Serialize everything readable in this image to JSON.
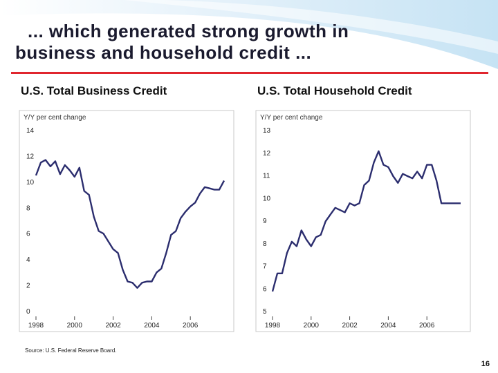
{
  "slide": {
    "title_line1": "... which generated strong growth in",
    "title_line2": "business and household credit ...",
    "source": "Source: U.S. Federal Reserve Board.",
    "page_number": "16",
    "accent_color": "#e0262e",
    "line_color": "#2b2d6e"
  },
  "chart_data": [
    {
      "type": "line",
      "title": "U.S. Total Business Credit",
      "ylabel": "Y/Y per cent change",
      "xlabel": "",
      "ylim": [
        0,
        14
      ],
      "yticks": [
        0,
        2,
        4,
        6,
        8,
        10,
        12,
        14
      ],
      "xlim": [
        1998,
        2007.75
      ],
      "xticks": [
        1998,
        2000,
        2002,
        2004,
        2006
      ],
      "series": [
        {
          "name": "U.S. Total Business Credit",
          "x": [
            1998.0,
            1998.25,
            1998.5,
            1998.75,
            1999.0,
            1999.25,
            1999.5,
            1999.75,
            2000.0,
            2000.25,
            2000.5,
            2000.75,
            2001.0,
            2001.25,
            2001.5,
            2001.75,
            2002.0,
            2002.25,
            2002.5,
            2002.75,
            2003.0,
            2003.25,
            2003.5,
            2003.75,
            2004.0,
            2004.25,
            2004.5,
            2004.75,
            2005.0,
            2005.25,
            2005.5,
            2005.75,
            2006.0,
            2006.25,
            2006.5,
            2006.75,
            2007.0,
            2007.25,
            2007.5,
            2007.75
          ],
          "values": [
            10.9,
            11.9,
            12.1,
            11.6,
            12.0,
            11.0,
            11.7,
            11.3,
            10.8,
            11.5,
            9.7,
            9.4,
            7.7,
            6.6,
            6.4,
            5.8,
            5.2,
            4.9,
            3.6,
            2.7,
            2.6,
            2.2,
            2.6,
            2.7,
            2.7,
            3.4,
            3.7,
            4.9,
            6.3,
            6.6,
            7.6,
            8.1,
            8.5,
            8.8,
            9.5,
            10.0,
            9.9,
            9.8,
            9.8,
            10.5
          ]
        }
      ]
    },
    {
      "type": "line",
      "title": "U.S. Total Household Credit",
      "ylabel": "Y/Y per cent change",
      "xlabel": "",
      "ylim": [
        5,
        13
      ],
      "yticks": [
        5,
        6,
        7,
        8,
        9,
        10,
        11,
        12,
        13
      ],
      "xlim": [
        1998,
        2007.75
      ],
      "xticks": [
        1998,
        2000,
        2002,
        2004,
        2006
      ],
      "series": [
        {
          "name": "U.S. Total Household Credit",
          "x": [
            1998.0,
            1998.25,
            1998.5,
            1998.75,
            1999.0,
            1999.25,
            1999.5,
            1999.75,
            2000.0,
            2000.25,
            2000.5,
            2000.75,
            2001.0,
            2001.25,
            2001.5,
            2001.75,
            2002.0,
            2002.25,
            2002.5,
            2002.75,
            2003.0,
            2003.25,
            2003.5,
            2003.75,
            2004.0,
            2004.25,
            2004.5,
            2004.75,
            2005.0,
            2005.25,
            2005.5,
            2005.75,
            2006.0,
            2006.25,
            2006.5,
            2006.75,
            2007.0,
            2007.25,
            2007.5,
            2007.75
          ],
          "values": [
            6.1,
            6.9,
            6.9,
            7.8,
            8.3,
            8.1,
            8.8,
            8.4,
            8.1,
            8.5,
            8.6,
            9.2,
            9.5,
            9.8,
            9.7,
            9.6,
            10.0,
            9.9,
            10.0,
            10.8,
            11.0,
            11.8,
            12.3,
            11.7,
            11.6,
            11.2,
            10.9,
            11.3,
            11.2,
            11.1,
            11.4,
            11.1,
            11.7,
            11.7,
            11.0,
            10.0,
            10.0,
            10.0,
            10.0,
            10.0
          ]
        }
      ]
    }
  ]
}
